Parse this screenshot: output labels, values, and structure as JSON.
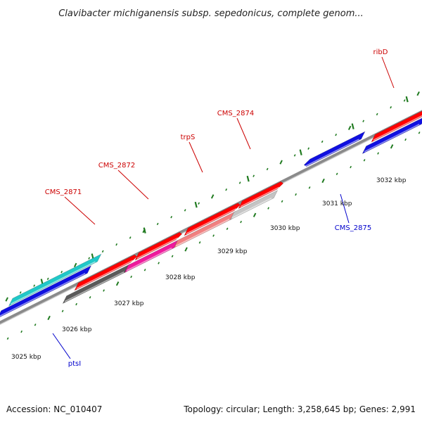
{
  "title": "Clavibacter michiganensis subsp. sepedonicus, complete genom...",
  "footer": {
    "accession": "Accession: NC_010407",
    "topology": "Topology: circular; Length: 3,258,645 bp; Genes: 2,991"
  },
  "colors": {
    "backbone": "#8a8a8a",
    "tick": "#1f7a1f",
    "label_forward": "#cc0000",
    "label_reverse": "#0000cc",
    "cds": "#ff0000"
  },
  "ticks": [
    {
      "label": "3025 kbp"
    },
    {
      "label": "3026 kbp"
    },
    {
      "label": "3027 kbp"
    },
    {
      "label": "3028 kbp"
    },
    {
      "label": "3029 kbp"
    },
    {
      "label": "3030 kbp"
    },
    {
      "label": "3031 kbp"
    },
    {
      "label": "3032 kbp"
    }
  ],
  "genes": [
    {
      "name": "CMS_2871",
      "color": "#5a5a5a",
      "strand": "forward"
    },
    {
      "name": "CMS_2872",
      "color": "#ee1a9c",
      "strand": "forward"
    },
    {
      "name": "trpS",
      "color": "#f08080",
      "strand": "forward"
    },
    {
      "name": "CMS_2874",
      "color": "#c4c4c4",
      "strand": "forward"
    },
    {
      "name": "ribD",
      "color": "#1010e0",
      "strand": "forward"
    },
    {
      "name": "CMS_2875",
      "color": "#1010e0",
      "strand": "reverse"
    },
    {
      "name": "ptsI",
      "color": "#20c8c8",
      "strand": "reverse"
    },
    {
      "name": "",
      "color": "#1010e0",
      "strand": "reverse"
    }
  ]
}
